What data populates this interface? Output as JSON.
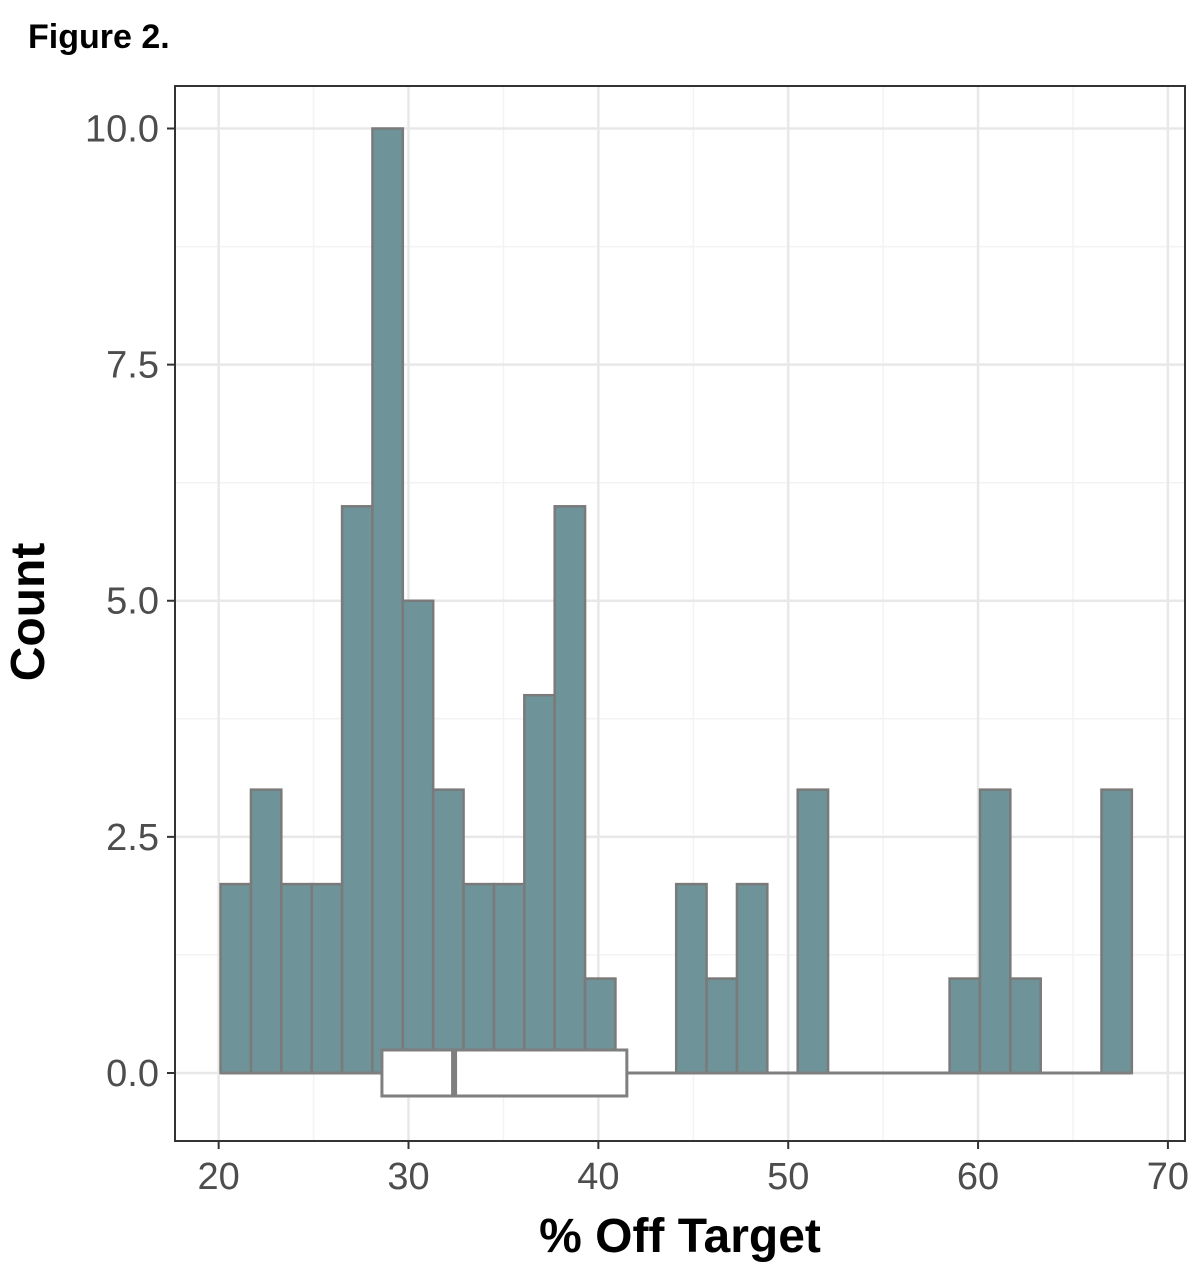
{
  "figure_label": "Figure 2.",
  "chart_data": {
    "type": "bar",
    "subtype": "histogram with boxplot",
    "title": "",
    "xlabel": "% Off Target",
    "ylabel": "Count",
    "xlim": [
      17.7,
      70.9
    ],
    "ylim": [
      -0.72,
      10.45
    ],
    "x_ticks": [
      20,
      30,
      40,
      50,
      60,
      70
    ],
    "x_tick_labels": [
      "20",
      "30",
      "40",
      "50",
      "60",
      "70"
    ],
    "y_ticks": [
      0,
      2.5,
      5,
      7.5,
      10
    ],
    "y_tick_labels": [
      "0.0",
      "2.5",
      "5.0",
      "7.5",
      "10.0"
    ],
    "grid": true,
    "bin_width": 1.6,
    "bins": [
      {
        "x_start": 20.1,
        "count": 2
      },
      {
        "x_start": 21.7,
        "count": 3
      },
      {
        "x_start": 23.3,
        "count": 2
      },
      {
        "x_start": 24.9,
        "count": 2
      },
      {
        "x_start": 26.5,
        "count": 6
      },
      {
        "x_start": 28.1,
        "count": 10
      },
      {
        "x_start": 29.7,
        "count": 5
      },
      {
        "x_start": 31.3,
        "count": 3
      },
      {
        "x_start": 32.9,
        "count": 2
      },
      {
        "x_start": 34.5,
        "count": 2
      },
      {
        "x_start": 36.1,
        "count": 4
      },
      {
        "x_start": 37.7,
        "count": 6
      },
      {
        "x_start": 39.3,
        "count": 1
      },
      {
        "x_start": 40.9,
        "count": 0
      },
      {
        "x_start": 42.5,
        "count": 0
      },
      {
        "x_start": 44.1,
        "count": 2
      },
      {
        "x_start": 45.7,
        "count": 1
      },
      {
        "x_start": 47.3,
        "count": 2
      },
      {
        "x_start": 48.9,
        "count": 0
      },
      {
        "x_start": 50.5,
        "count": 3
      },
      {
        "x_start": 52.1,
        "count": 0
      },
      {
        "x_start": 53.7,
        "count": 0
      },
      {
        "x_start": 55.3,
        "count": 0
      },
      {
        "x_start": 56.9,
        "count": 0
      },
      {
        "x_start": 58.5,
        "count": 1
      },
      {
        "x_start": 60.1,
        "count": 3
      },
      {
        "x_start": 61.7,
        "count": 1
      },
      {
        "x_start": 63.3,
        "count": 0
      },
      {
        "x_start": 64.9,
        "count": 0
      },
      {
        "x_start": 66.5,
        "count": 3
      }
    ],
    "boxplot": {
      "q1": 28.6,
      "median": 32.4,
      "q3": 41.5,
      "whisker_low": 20.1,
      "whisker_high": 68.1
    },
    "colors": {
      "bar_fill": "#6e9399",
      "bar_stroke": "#7a7a7a",
      "box_fill": "#ffffff",
      "box_stroke": "#7f7f7f",
      "panel_border": "#333333"
    }
  }
}
